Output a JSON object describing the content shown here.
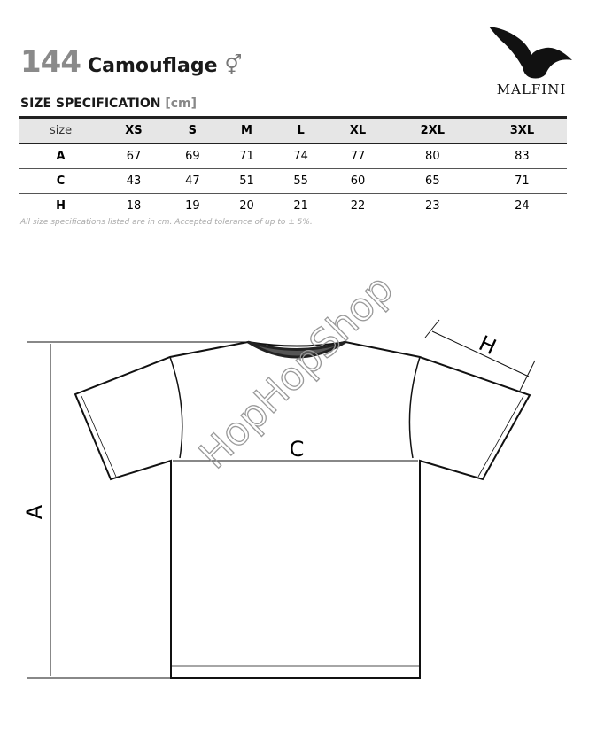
{
  "product": {
    "number": "144",
    "name": "Camouflage",
    "gender_symbol": "⚥"
  },
  "brand": {
    "name": "MALFINI",
    "logo_icon": "eagle-icon"
  },
  "spec_title": "SIZE SPECIFICATION",
  "spec_unit": "[cm]",
  "table": {
    "headers": [
      "size",
      "XS",
      "S",
      "M",
      "L",
      "XL",
      "2XL",
      "3XL"
    ],
    "rows": [
      {
        "label": "A",
        "values": [
          "67",
          "69",
          "71",
          "74",
          "77",
          "80",
          "83"
        ]
      },
      {
        "label": "C",
        "values": [
          "43",
          "47",
          "51",
          "55",
          "60",
          "65",
          "71"
        ]
      },
      {
        "label": "H",
        "values": [
          "18",
          "19",
          "20",
          "21",
          "22",
          "23",
          "24"
        ]
      }
    ]
  },
  "note": "All size specifications listed are in cm. Accepted tolerance of up to ± 5%.",
  "diagram": {
    "label_a": "A",
    "label_c": "C",
    "label_h": "H",
    "watermark": "HopHopShop"
  }
}
